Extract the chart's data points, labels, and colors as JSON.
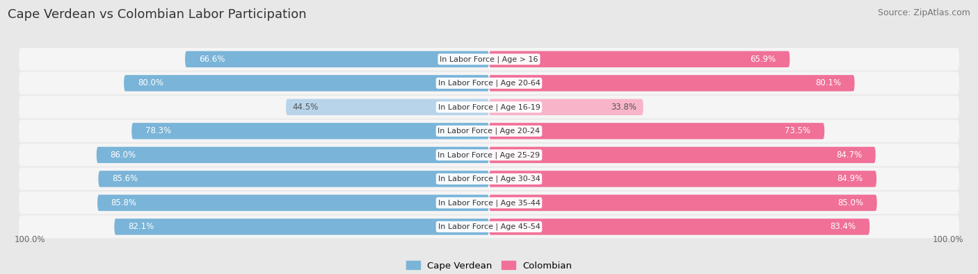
{
  "title": "Cape Verdean vs Colombian Labor Participation",
  "source": "Source: ZipAtlas.com",
  "categories": [
    "In Labor Force | Age > 16",
    "In Labor Force | Age 20-64",
    "In Labor Force | Age 16-19",
    "In Labor Force | Age 20-24",
    "In Labor Force | Age 25-29",
    "In Labor Force | Age 30-34",
    "In Labor Force | Age 35-44",
    "In Labor Force | Age 45-54"
  ],
  "cape_verdean": [
    66.6,
    80.0,
    44.5,
    78.3,
    86.0,
    85.6,
    85.8,
    82.1
  ],
  "colombian": [
    65.9,
    80.1,
    33.8,
    73.5,
    84.7,
    84.9,
    85.0,
    83.4
  ],
  "cape_verdean_color_strong": "#7ab4d8",
  "cape_verdean_color_light": "#b8d4ea",
  "colombian_color_strong": "#f07098",
  "colombian_color_light": "#f8b4c8",
  "bar_height": 0.68,
  "bg_color": "#e8e8e8",
  "row_bg_color": "#f5f5f5",
  "title_fontsize": 13,
  "source_fontsize": 9,
  "val_fontsize": 8.5,
  "cat_fontsize": 8,
  "max_value": 100.0,
  "legend_cape_verdean": "Cape Verdean",
  "legend_colombian": "Colombian",
  "low_threshold": 55
}
